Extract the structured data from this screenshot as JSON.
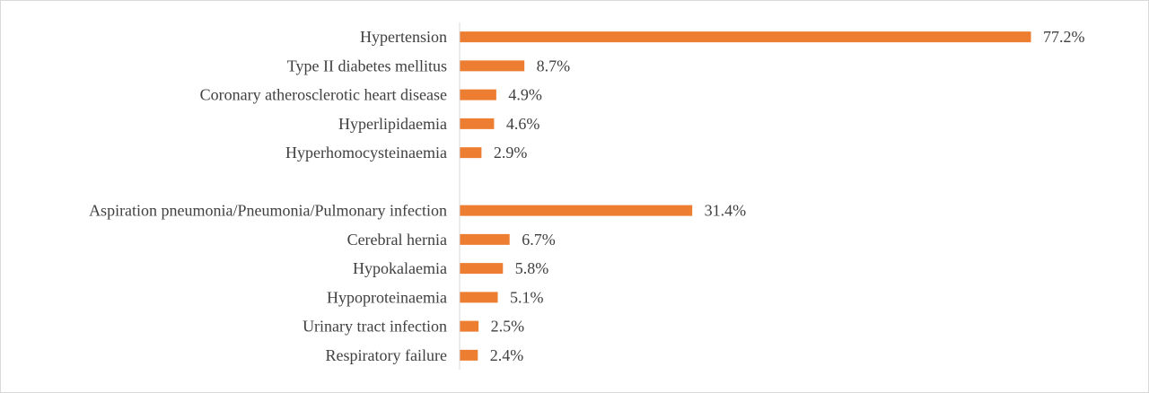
{
  "chart_data": {
    "type": "bar",
    "orientation": "horizontal",
    "bar_color": "#ED7D31",
    "text_color": "#404040",
    "axis_color": "#d9d9d9",
    "xlim": [
      0,
      77.2
    ],
    "value_format": "{v}%",
    "categories": [
      "Hypertension",
      "Type II diabetes mellitus",
      "Coronary atherosclerotic heart disease",
      "Hyperlipidaemia",
      "Hyperhomocysteinaemia",
      "",
      "Aspiration pneumonia/Pneumonia/Pulmonary infection",
      "Cerebral hernia",
      "Hypokalaemia",
      "Hypoproteinaemia",
      "Urinary tract infection",
      "Respiratory failure"
    ],
    "values": [
      77.2,
      8.7,
      4.9,
      4.6,
      2.9,
      null,
      31.4,
      6.7,
      5.8,
      5.1,
      2.5,
      2.4
    ],
    "value_labels": [
      "77.2%",
      "8.7%",
      "4.9%",
      "4.6%",
      "2.9%",
      "",
      "31.4%",
      "6.7%",
      "5.8%",
      "5.1%",
      "2.5%",
      "2.4%"
    ],
    "title": "",
    "xlabel": "",
    "ylabel": "",
    "grid": false,
    "legend": "none"
  }
}
